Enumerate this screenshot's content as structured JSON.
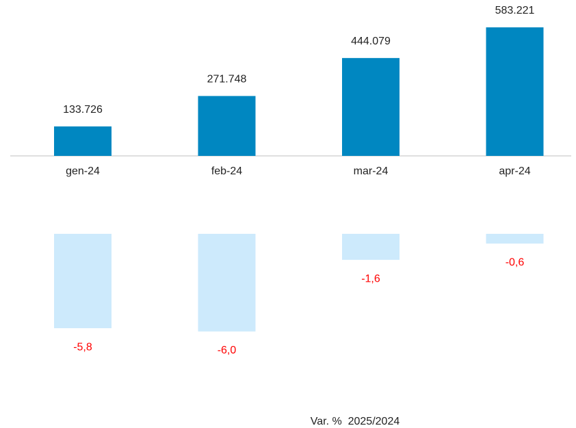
{
  "chart_data": [
    {
      "type": "bar",
      "categories": [
        "gen-24",
        "feb-24",
        "mar-24",
        "apr-24"
      ],
      "values": [
        133726,
        271748,
        444079,
        583221
      ],
      "value_labels": [
        "133.726",
        "271.748",
        "444.079",
        "583.221"
      ],
      "color": "#0087c1",
      "ylim": [
        0,
        600000
      ]
    },
    {
      "type": "bar",
      "values": [
        -5.8,
        -6.0,
        -1.6,
        -0.6
      ],
      "value_labels": [
        "-5,8",
        "-6,0",
        "-1,6",
        "-0,6"
      ],
      "color": "#cdeafc",
      "label_color": "#ff0000",
      "ylim": [
        -6.5,
        0
      ],
      "caption": "Var. %  2025/2024"
    }
  ]
}
